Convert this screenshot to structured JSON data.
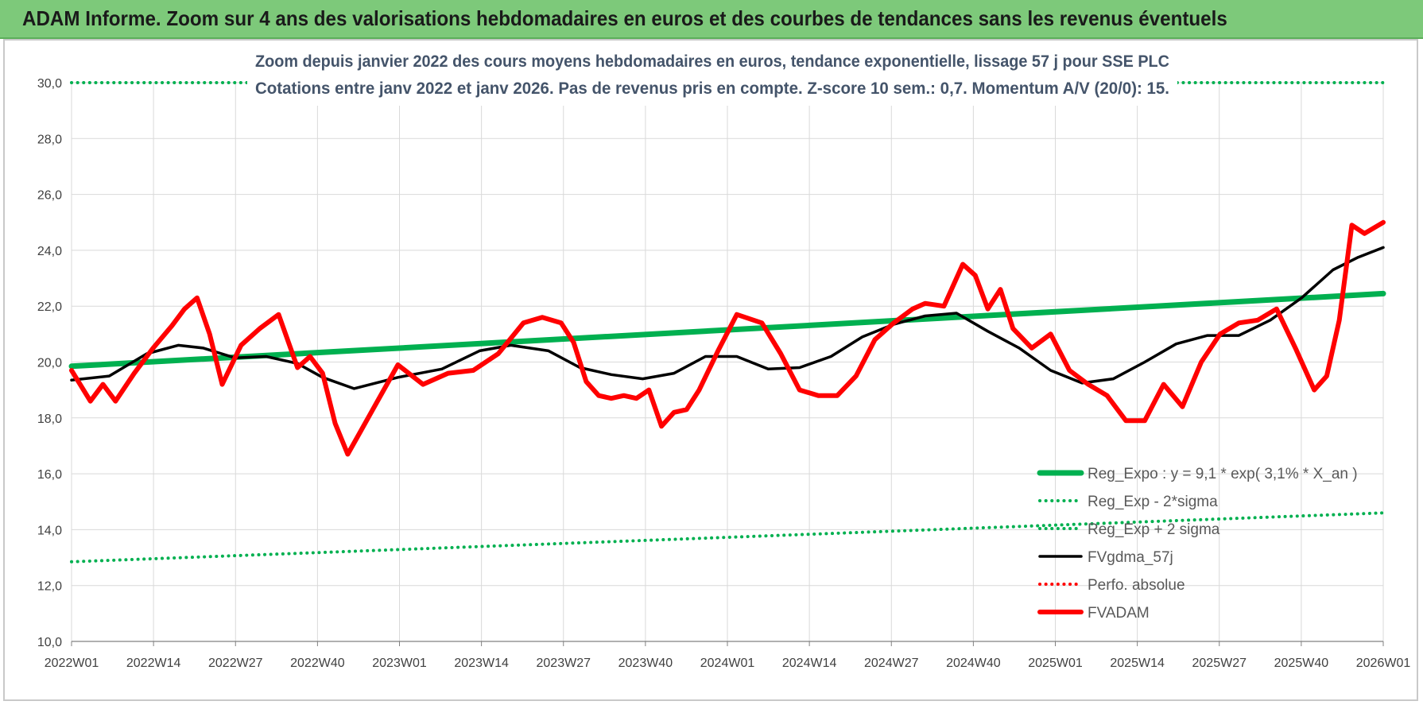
{
  "header": {
    "banner": "ADAM Informe. Zoom sur 4 ans des valorisations hebdomadaires en euros et des courbes de tendances sans les revenus éventuels"
  },
  "chart_data": {
    "type": "line",
    "title_lines": [
      "Zoom depuis janvier 2022 des cours moyens hebdomadaires en euros, tendance exponentielle, lissage 57 j pour SSE PLC",
      "Cotations entre janv 2022 et janv 2026. Pas de revenus pris en compte. Z-score 10 sem.: 0,7. Momentum A/V (20/0): 15."
    ],
    "xlabel": "",
    "ylabel": "",
    "ylim": [
      10,
      30
    ],
    "y_ticks": [
      "10,0",
      "12,0",
      "14,0",
      "16,0",
      "18,0",
      "20,0",
      "22,0",
      "24,0",
      "26,0",
      "28,0",
      "30,0"
    ],
    "x_ticks": [
      "2022W01",
      "2022W14",
      "2022W27",
      "2022W40",
      "2023W01",
      "2023W14",
      "2023W27",
      "2023W40",
      "2024W01",
      "2024W14",
      "2024W27",
      "2024W40",
      "2025W01",
      "2025W14",
      "2025W27",
      "2025W40",
      "2026W01"
    ],
    "grid": true,
    "legend_position": "bottom-right",
    "colors": {
      "reg_expo": "#00b050",
      "fvgdma": "#000000",
      "perfo": "#ff0000",
      "fvadam": "#ff0000",
      "grid": "#d9d9d9"
    },
    "series": [
      {
        "name": "Reg_Expo : y = 9,1 * exp( 3,1% *  X_an )",
        "style": "solid-green-thick",
        "x": [
          0,
          209
        ],
        "values": [
          19.85,
          22.45
        ]
      },
      {
        "name": "Reg_Exp - 2*sigma",
        "style": "dotted-green",
        "x": [
          0,
          209
        ],
        "values": [
          12.85,
          14.6
        ]
      },
      {
        "name": "Reg_Exp + 2 sigma",
        "style": "dotted-green",
        "x": [
          0,
          209
        ],
        "values": [
          30.0,
          30.0
        ]
      },
      {
        "name": "FVgdma_57j",
        "style": "solid-black",
        "x": [
          0,
          6,
          12,
          17,
          21,
          26,
          31,
          36,
          40,
          45,
          52,
          59,
          65,
          70,
          76,
          81,
          86,
          91,
          96,
          101,
          106,
          111,
          116,
          121,
          126,
          131,
          136,
          141,
          146,
          151,
          156,
          161,
          166,
          171,
          176,
          181,
          186,
          191,
          196,
          201,
          205,
          209
        ],
        "values": [
          19.35,
          19.5,
          20.3,
          20.6,
          20.5,
          20.15,
          20.2,
          19.95,
          19.45,
          19.05,
          19.45,
          19.75,
          20.4,
          20.6,
          20.4,
          19.8,
          19.55,
          19.4,
          19.6,
          20.2,
          20.2,
          19.75,
          19.8,
          20.2,
          20.9,
          21.35,
          21.65,
          21.75,
          21.1,
          20.5,
          19.7,
          19.25,
          19.4,
          20.0,
          20.65,
          20.95,
          20.95,
          21.5,
          22.3,
          23.3,
          23.75,
          24.1
        ]
      },
      {
        "name": "Perfo. absolue",
        "style": "dotted-red",
        "x": [],
        "values": []
      },
      {
        "name": "FVADAM",
        "style": "solid-red-thick",
        "x": [
          0,
          3,
          5,
          7,
          10,
          13,
          16,
          18,
          20,
          22,
          24,
          27,
          30,
          33,
          36,
          38,
          40,
          42,
          44,
          46,
          48,
          52,
          56,
          60,
          64,
          68,
          72,
          75,
          78,
          80,
          82,
          84,
          86,
          88,
          90,
          92,
          94,
          96,
          98,
          100,
          103,
          106,
          110,
          113,
          116,
          119,
          122,
          125,
          128,
          131,
          134,
          136,
          139,
          142,
          144,
          146,
          148,
          150,
          153,
          156,
          159,
          162,
          165,
          168,
          171,
          174,
          177,
          180,
          183,
          186,
          189,
          192,
          195,
          198,
          200,
          202,
          204,
          206,
          209
        ],
        "values": [
          19.7,
          18.6,
          19.2,
          18.6,
          19.6,
          20.5,
          21.3,
          21.9,
          22.3,
          21.0,
          19.2,
          20.6,
          21.2,
          21.7,
          19.8,
          20.2,
          19.6,
          17.8,
          16.7,
          17.5,
          18.3,
          19.9,
          19.2,
          19.6,
          19.7,
          20.3,
          21.4,
          21.6,
          21.4,
          20.7,
          19.3,
          18.8,
          18.7,
          18.8,
          18.7,
          19.0,
          17.7,
          18.2,
          18.3,
          19.0,
          20.4,
          21.7,
          21.4,
          20.3,
          19.0,
          18.8,
          18.8,
          19.5,
          20.8,
          21.4,
          21.9,
          22.1,
          22.0,
          23.5,
          23.1,
          21.9,
          22.6,
          21.2,
          20.5,
          21.0,
          19.7,
          19.2,
          18.8,
          17.9,
          17.9,
          19.2,
          18.4,
          20.0,
          21.0,
          21.4,
          21.5,
          21.9,
          20.5,
          19.0,
          19.5,
          21.5,
          24.9,
          24.6,
          25.0
        ]
      }
    ]
  }
}
